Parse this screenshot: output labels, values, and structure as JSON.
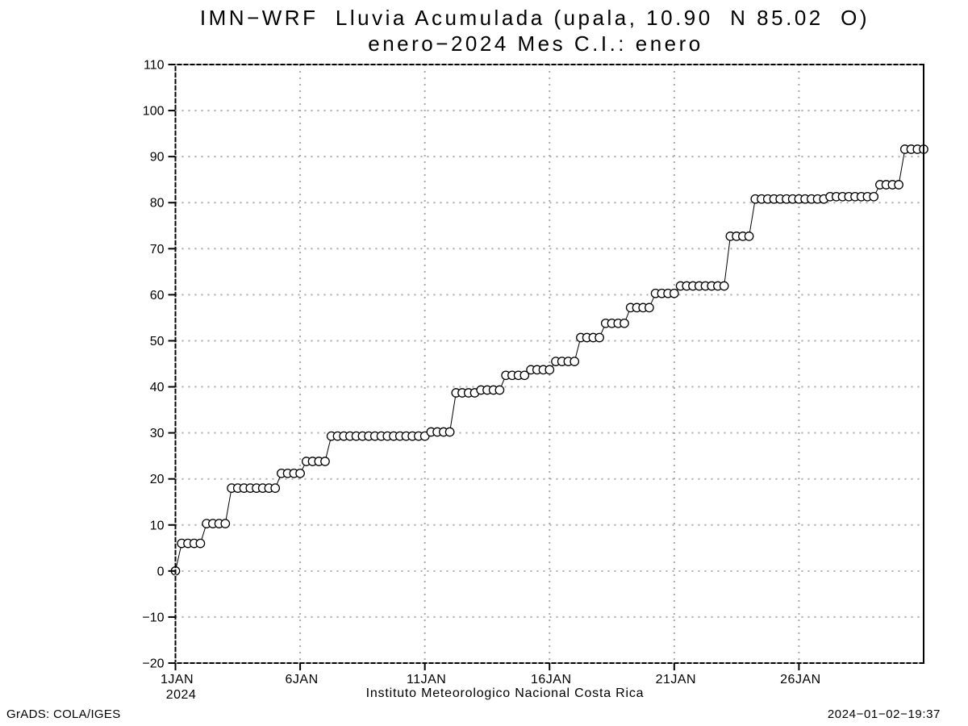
{
  "header": {
    "title_line1": "IMN−WRF  Lluvia Acumulada (upala, 10.90  N 85.02  O)",
    "title_line2": "enero−2024 Mes C.I.: enero"
  },
  "footer": {
    "axis_caption": "Instituto Meteorologico Nacional Costa Rica",
    "credit": "GrADS: COLA/IGES",
    "timestamp": "2024−01−02−19:37"
  },
  "colors": {
    "line": "#000000",
    "marker_fill": "#ffffff",
    "grid": "#a8a8a8",
    "grid_on_frame": "#c8c8c8",
    "frame": "#000000",
    "background": "#ffffff",
    "text": "#000000"
  },
  "chart_data": {
    "type": "line",
    "title": "IMN-WRF Lluvia Acumulada (upala, 10.90 N 85.02 O)",
    "subtitle": "enero-2024 Mes C.I.: enero",
    "ylabel": "",
    "xlabel": "Instituto Meteorologico Nacional Costa Rica",
    "ylim": [
      -20,
      110
    ],
    "x_days_span": 30,
    "x_start": "1JAN2024 00Z",
    "x_step_hours": 6,
    "grid": "dotted",
    "marker": "open-circle",
    "legend": "none",
    "y_ticks": [
      {
        "v": -20,
        "label": "−20"
      },
      {
        "v": -10,
        "label": "−10"
      },
      {
        "v": 0,
        "label": "0"
      },
      {
        "v": 10,
        "label": "10"
      },
      {
        "v": 20,
        "label": "20"
      },
      {
        "v": 30,
        "label": "30"
      },
      {
        "v": 40,
        "label": "40"
      },
      {
        "v": 50,
        "label": "50"
      },
      {
        "v": 60,
        "label": "60"
      },
      {
        "v": 70,
        "label": "70"
      },
      {
        "v": 80,
        "label": "80"
      },
      {
        "v": 90,
        "label": "90"
      },
      {
        "v": 100,
        "label": "100"
      },
      {
        "v": 110,
        "label": "110"
      }
    ],
    "x_ticks": [
      {
        "day": 1,
        "label": "1JAN",
        "year": "2024"
      },
      {
        "day": 6,
        "label": "6JAN"
      },
      {
        "day": 11,
        "label": "11JAN"
      },
      {
        "day": 16,
        "label": "16JAN"
      },
      {
        "day": 21,
        "label": "21JAN"
      },
      {
        "day": 26,
        "label": "26JAN"
      }
    ],
    "values": [
      0,
      6,
      6,
      6,
      6,
      10.3,
      10.3,
      10.3,
      10.3,
      18,
      18,
      18,
      18,
      18,
      18,
      18,
      18,
      21.2,
      21.2,
      21.2,
      21.2,
      23.8,
      23.8,
      23.8,
      23.8,
      29.3,
      29.3,
      29.3,
      29.3,
      29.3,
      29.3,
      29.3,
      29.3,
      29.3,
      29.3,
      29.3,
      29.3,
      29.3,
      29.3,
      29.3,
      29.3,
      30.2,
      30.2,
      30.2,
      30.2,
      38.7,
      38.7,
      38.7,
      38.7,
      39.3,
      39.3,
      39.3,
      39.3,
      42.5,
      42.5,
      42.5,
      42.5,
      43.7,
      43.7,
      43.7,
      43.7,
      45.5,
      45.5,
      45.5,
      45.5,
      50.7,
      50.7,
      50.7,
      50.7,
      53.8,
      53.8,
      53.8,
      53.8,
      57.2,
      57.2,
      57.2,
      57.2,
      60.3,
      60.3,
      60.3,
      60.3,
      61.9,
      61.9,
      61.9,
      61.9,
      61.9,
      61.9,
      61.9,
      61.9,
      72.7,
      72.7,
      72.7,
      72.7,
      80.8,
      80.8,
      80.8,
      80.8,
      80.8,
      80.8,
      80.8,
      80.8,
      80.8,
      80.8,
      80.8,
      80.8,
      81.3,
      81.3,
      81.3,
      81.3,
      81.3,
      81.3,
      81.3,
      81.3,
      83.9,
      83.9,
      83.9,
      83.9,
      91.6,
      91.6,
      91.6,
      91.6
    ]
  }
}
